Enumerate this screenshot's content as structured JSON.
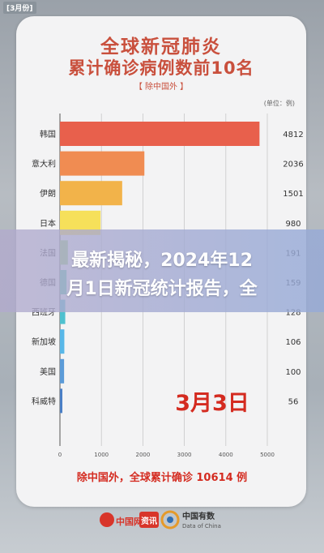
{
  "tag": "[3月份]",
  "title_line1": "全球新冠肺炎",
  "title_line2": "累计确诊病例数前10名",
  "subtitle": "【 除中国外 】",
  "unit": "(单位：例)",
  "date_stamp": "3月3日",
  "footer": "除中国外，全球累计确诊 10614 例",
  "banner": {
    "line1": "最新揭秘，2024年12",
    "line2": "月1日新冠统计报告，全"
  },
  "logos": {
    "left_label": "中国网",
    "left_box": "资讯",
    "right_label": "中国有数",
    "right_sub": "Data of China"
  },
  "chart_data": {
    "type": "bar",
    "orientation": "horizontal",
    "categories": [
      "韩国",
      "意大利",
      "伊朗",
      "日本",
      "法国",
      "德国",
      "西班牙",
      "新加坡",
      "美国",
      "科威特"
    ],
    "values": [
      4812,
      2036,
      1501,
      980,
      191,
      159,
      128,
      106,
      100,
      56
    ],
    "value_labels": [
      "4812",
      "2036",
      "1501",
      "980",
      "191",
      "159",
      "128",
      "106",
      "100",
      "56"
    ],
    "colors": [
      "#e8604c",
      "#f08c52",
      "#f2b34a",
      "#f6e05a",
      "#9ed47a",
      "#5ecba8",
      "#4fc1cf",
      "#58b7e8",
      "#5b9bd8",
      "#4a7fc6"
    ],
    "xlim": [
      0,
      5000
    ],
    "xticks": [
      0,
      1000,
      2000,
      3000,
      4000,
      5000
    ],
    "grid": true
  }
}
